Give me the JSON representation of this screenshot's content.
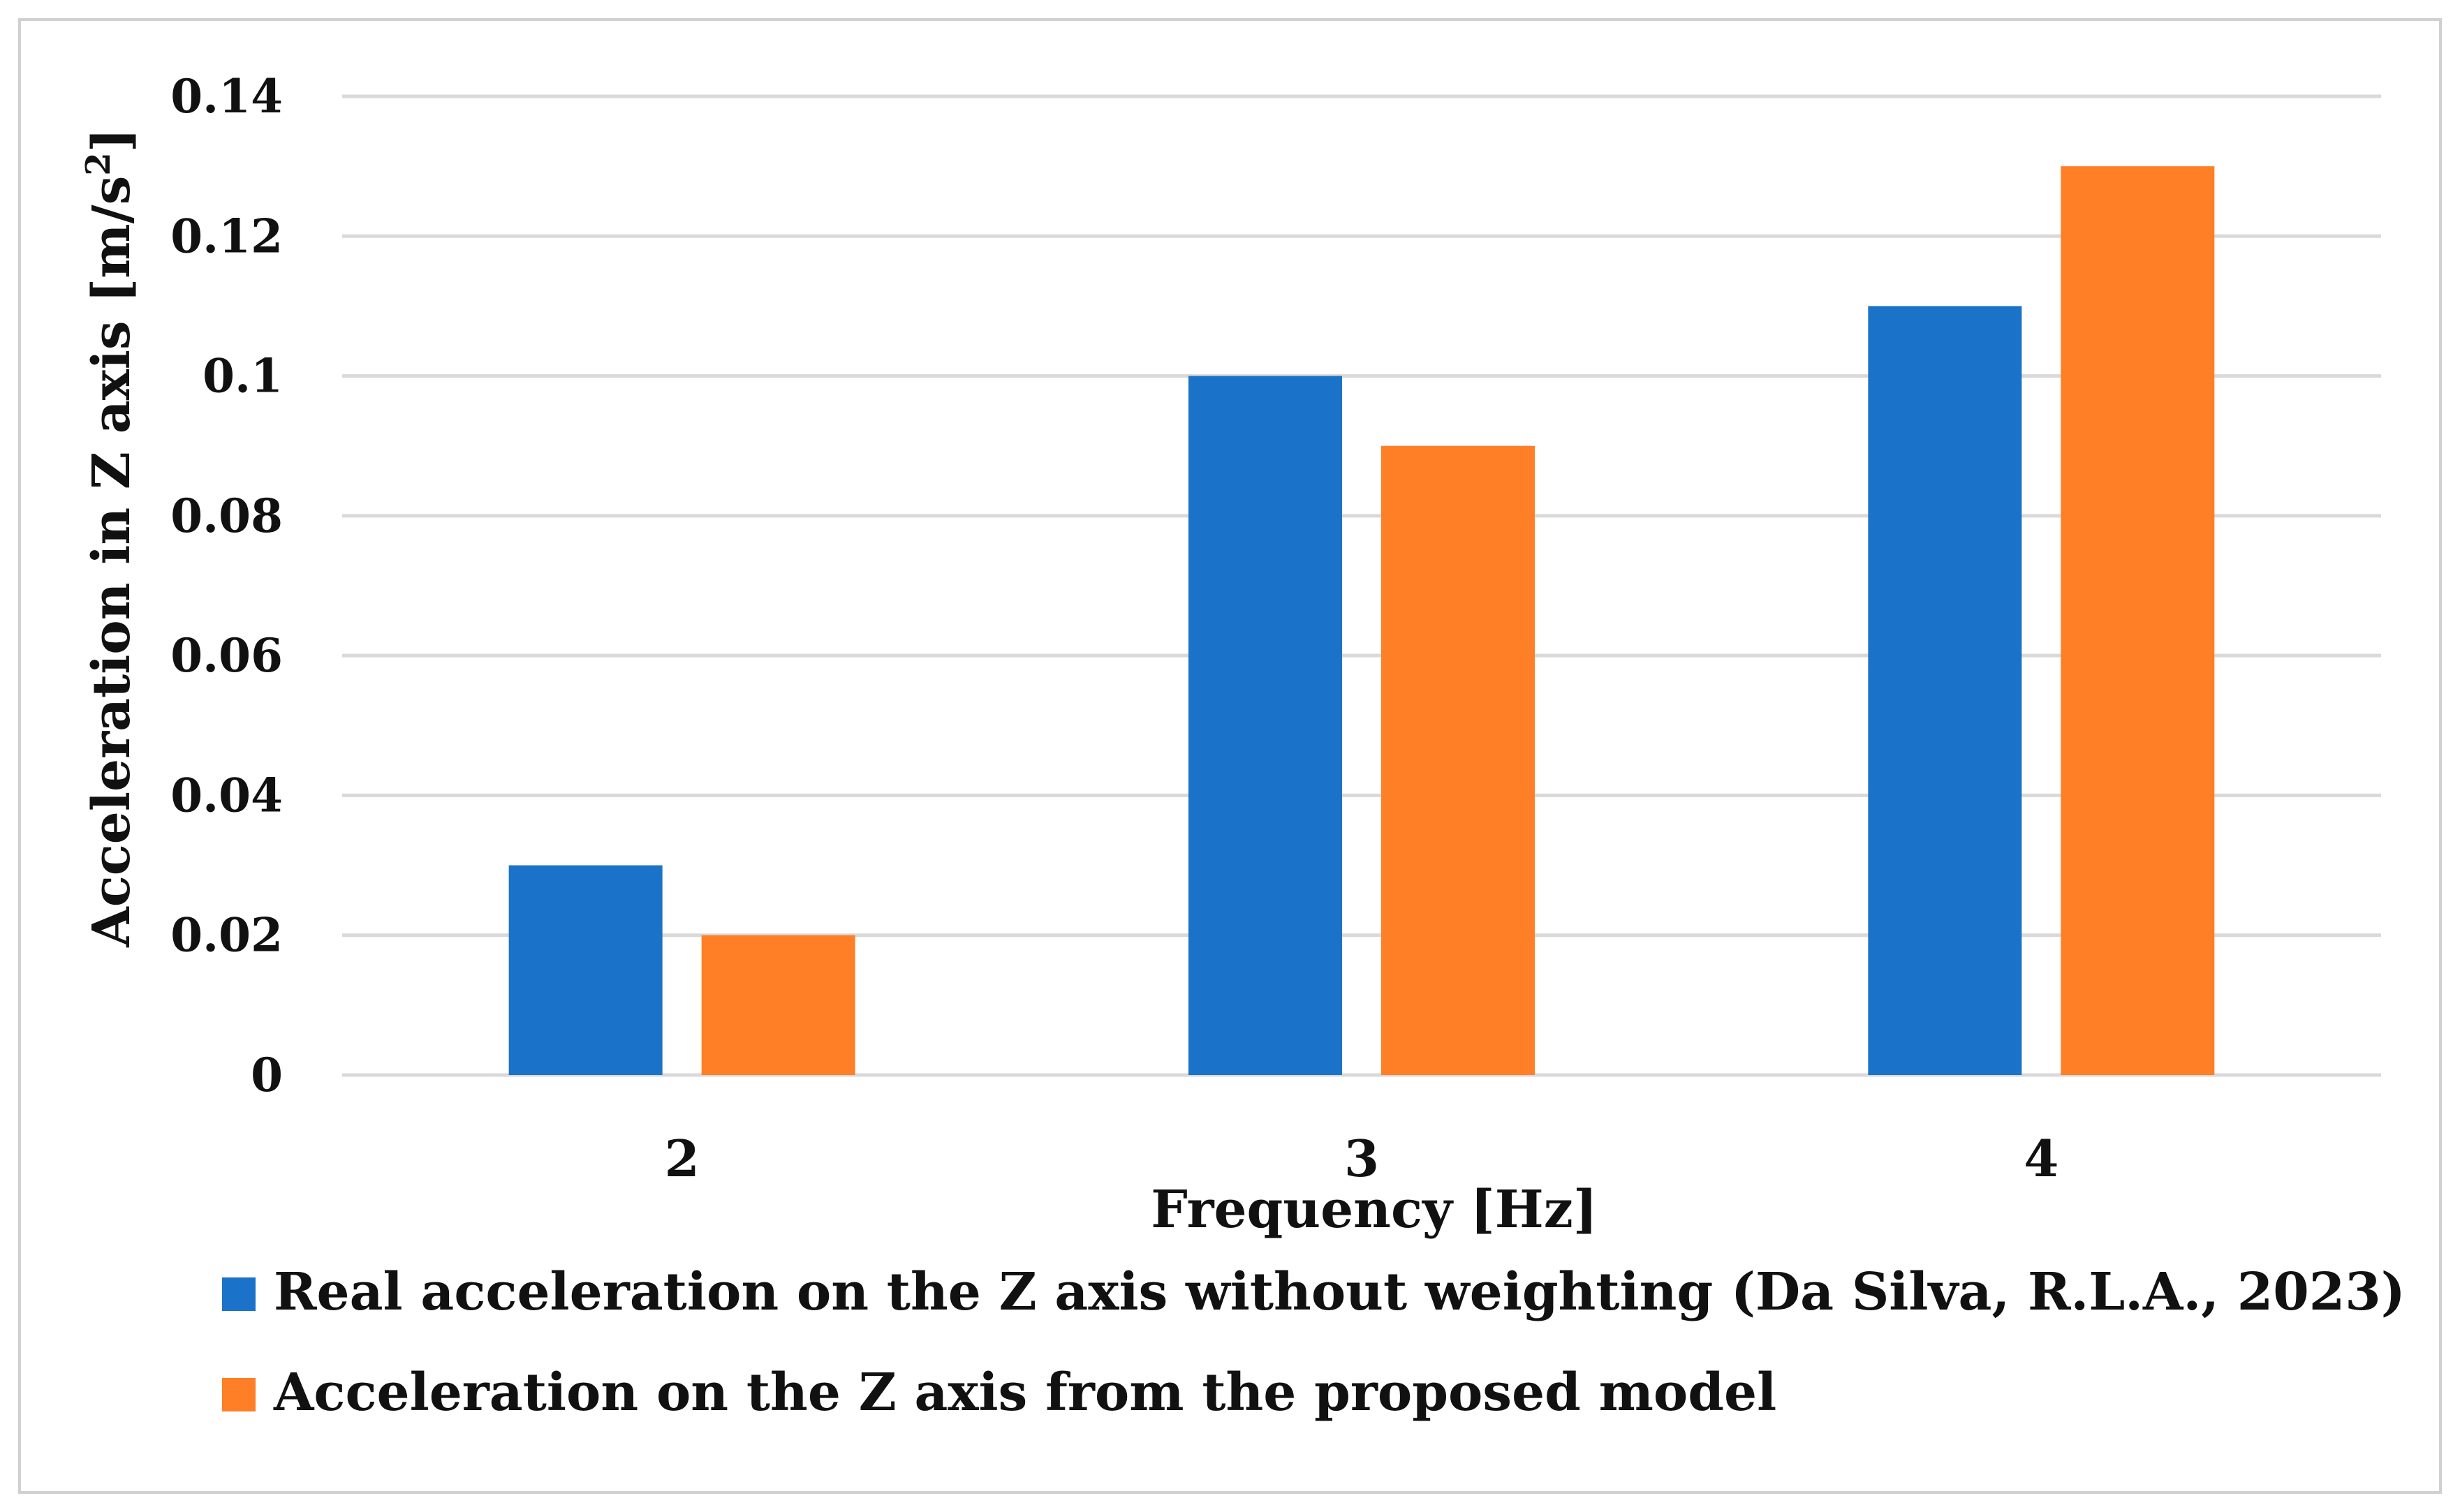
{
  "chart_data": {
    "type": "bar",
    "categories": [
      "2",
      "3",
      "4"
    ],
    "series": [
      {
        "name": "Real acceleration on the Z axis without weighting (Da Silva, R.L.A., 2023)",
        "values": [
          0.03,
          0.1,
          0.11
        ],
        "color": "#1a73c9"
      },
      {
        "name": "Acceleration on the Z axis from the proposed model",
        "values": [
          0.02,
          0.09,
          0.13
        ],
        "color": "#ff7f27"
      }
    ],
    "title": "",
    "xlabel": "Frequency [Hz]",
    "ylabel_main": "Acceleration in Z axis [m/s",
    "ylabel_sup": "2",
    "ylabel_end": "]",
    "ylim": [
      0,
      0.14
    ],
    "yticks": [
      0,
      0.02,
      0.04,
      0.06,
      0.08,
      0.1,
      0.12,
      0.14
    ],
    "ytick_labels": [
      "0",
      "0.02",
      "0.04",
      "0.06",
      "0.08",
      "0.1",
      "0.12",
      "0.14"
    ],
    "grid": true,
    "legend_position": "bottom"
  }
}
